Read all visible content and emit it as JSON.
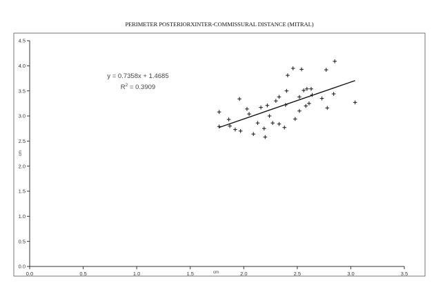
{
  "chart_data": {
    "type": "scatter",
    "title": "PERIMETER POSTERIORXINTER-COMMISSURAL DISTANCE (MITRAL)",
    "xlabel": "cm",
    "ylabel": "cm",
    "xlim": [
      0,
      3.5
    ],
    "ylim": [
      0,
      4.5
    ],
    "x_ticks": [
      "0.0",
      "0.5",
      "1.0",
      "1.5",
      "2.0",
      "2.5",
      "3.0",
      "3.5"
    ],
    "y_ticks": [
      "0.0",
      "0.5",
      "1.0",
      "1.5",
      "2.0",
      "2.5",
      "3.0",
      "3.5",
      "4.0",
      "4.5"
    ],
    "grid": false,
    "marker": "+",
    "points": [
      {
        "x": 1.77,
        "y": 3.08
      },
      {
        "x": 1.77,
        "y": 2.79
      },
      {
        "x": 1.86,
        "y": 2.93
      },
      {
        "x": 1.87,
        "y": 2.8
      },
      {
        "x": 1.92,
        "y": 2.73
      },
      {
        "x": 1.96,
        "y": 3.34
      },
      {
        "x": 1.97,
        "y": 2.7
      },
      {
        "x": 2.03,
        "y": 3.14
      },
      {
        "x": 2.05,
        "y": 3.04
      },
      {
        "x": 2.09,
        "y": 2.64
      },
      {
        "x": 2.13,
        "y": 2.86
      },
      {
        "x": 2.16,
        "y": 3.17
      },
      {
        "x": 2.19,
        "y": 2.75
      },
      {
        "x": 2.2,
        "y": 2.58
      },
      {
        "x": 2.22,
        "y": 3.21
      },
      {
        "x": 2.24,
        "y": 3.0
      },
      {
        "x": 2.27,
        "y": 2.86
      },
      {
        "x": 2.3,
        "y": 3.3
      },
      {
        "x": 2.33,
        "y": 2.84
      },
      {
        "x": 2.33,
        "y": 3.38
      },
      {
        "x": 2.38,
        "y": 2.77
      },
      {
        "x": 2.39,
        "y": 3.22
      },
      {
        "x": 2.4,
        "y": 3.5
      },
      {
        "x": 2.41,
        "y": 3.81
      },
      {
        "x": 2.46,
        "y": 3.95
      },
      {
        "x": 2.48,
        "y": 2.94
      },
      {
        "x": 2.52,
        "y": 3.1
      },
      {
        "x": 2.52,
        "y": 3.38
      },
      {
        "x": 2.54,
        "y": 3.93
      },
      {
        "x": 2.56,
        "y": 3.51
      },
      {
        "x": 2.58,
        "y": 3.2
      },
      {
        "x": 2.59,
        "y": 3.54
      },
      {
        "x": 2.61,
        "y": 3.25
      },
      {
        "x": 2.63,
        "y": 3.54
      },
      {
        "x": 2.64,
        "y": 3.42
      },
      {
        "x": 2.73,
        "y": 3.35
      },
      {
        "x": 2.77,
        "y": 3.92
      },
      {
        "x": 2.78,
        "y": 3.16
      },
      {
        "x": 2.84,
        "y": 3.44
      },
      {
        "x": 2.85,
        "y": 4.09
      },
      {
        "x": 3.04,
        "y": 3.27
      }
    ],
    "trendline": {
      "slope": 0.7358,
      "intercept": 1.4685,
      "x_range": [
        1.77,
        3.04
      ],
      "equation": "y = 0.7358x + 1.4685",
      "r2_label": "R",
      "r2_sup": "2",
      "r2_value": " = 0.3909"
    }
  }
}
